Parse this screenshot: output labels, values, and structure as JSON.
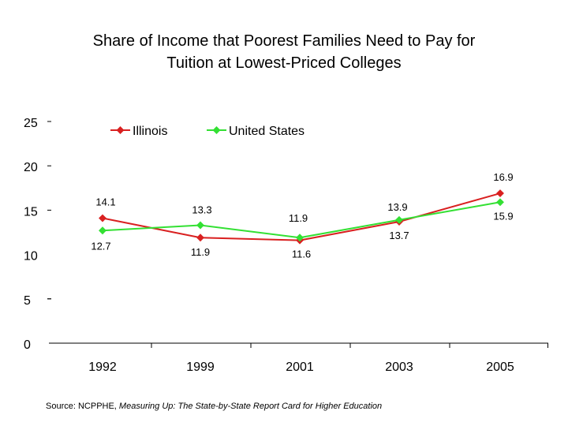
{
  "chart_data": {
    "type": "line",
    "title_line1": "Share of Income that Poorest Families Need to Pay for",
    "title_line2": "Tuition at Lowest-Priced Colleges",
    "xlabel": "",
    "ylabel": "",
    "categories": [
      "1992",
      "1999",
      "2001",
      "2003",
      "2005"
    ],
    "y_ticks": [
      "0",
      "5",
      "10",
      "15",
      "20",
      "25"
    ],
    "ylim": [
      0,
      25
    ],
    "grid": false,
    "legend_placement": "top",
    "series": [
      {
        "name": "Illinois",
        "color": "#d92020",
        "values": [
          14.1,
          11.9,
          11.6,
          13.7,
          16.9
        ],
        "labels": [
          "14.1",
          "11.9",
          "11.6",
          "13.7",
          "16.9"
        ]
      },
      {
        "name": "United States",
        "color": "#33e033",
        "values": [
          12.7,
          13.3,
          11.9,
          13.9,
          15.9
        ],
        "labels": [
          "12.7",
          "13.3",
          "11.9",
          "13.9",
          "15.9"
        ]
      }
    ]
  },
  "source": {
    "prefix": "Source:  NCPPHE, ",
    "title": "Measuring Up: The State-by-State Report Card for Higher Education"
  }
}
